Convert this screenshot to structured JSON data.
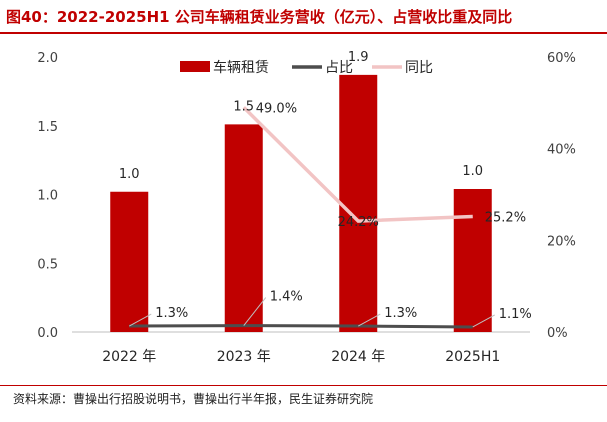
{
  "title": "图40：2022-2025H1 公司车辆租赁业务营收（亿元）、占营收比重及同比",
  "source": "资料来源：曹操出行招股说明书，曹操出行半年报，民生证券研究院",
  "colors": {
    "accent": "#c00000",
    "bar": "#c00000",
    "share_line": "#4d4d4d",
    "yoy_line": "#f2c4c4"
  },
  "chart_data": {
    "type": "bar",
    "categories": [
      "2022 年",
      "2023 年",
      "2024 年",
      "2025H1"
    ],
    "series": [
      {
        "name": "车辆租赁",
        "type": "bar",
        "axis": "left",
        "values": [
          1.0,
          1.5,
          1.9,
          1.0
        ],
        "labels": [
          "1.0",
          "1.5",
          "1.9",
          "1.0"
        ]
      },
      {
        "name": "占比",
        "type": "line",
        "axis": "right",
        "values": [
          1.3,
          1.4,
          1.3,
          1.1
        ],
        "labels": [
          "1.3%",
          "1.4%",
          "1.3%",
          "1.1%"
        ]
      },
      {
        "name": "同比",
        "type": "line",
        "axis": "right",
        "values": [
          null,
          49.0,
          24.2,
          25.2
        ],
        "labels": [
          "",
          "49.0%",
          "24.2%",
          "25.2%"
        ]
      }
    ],
    "bar_heights": [
      1.02,
      1.51,
      1.87,
      1.04
    ],
    "left_axis": {
      "min": 0,
      "max": 2.0,
      "ticks": [
        "0.0",
        "0.5",
        "1.0",
        "1.5",
        "2.0"
      ]
    },
    "right_axis": {
      "min": 0,
      "max": 60,
      "ticks": [
        "0%",
        "20%",
        "40%",
        "60%"
      ]
    },
    "legend": "top",
    "grid": false
  }
}
